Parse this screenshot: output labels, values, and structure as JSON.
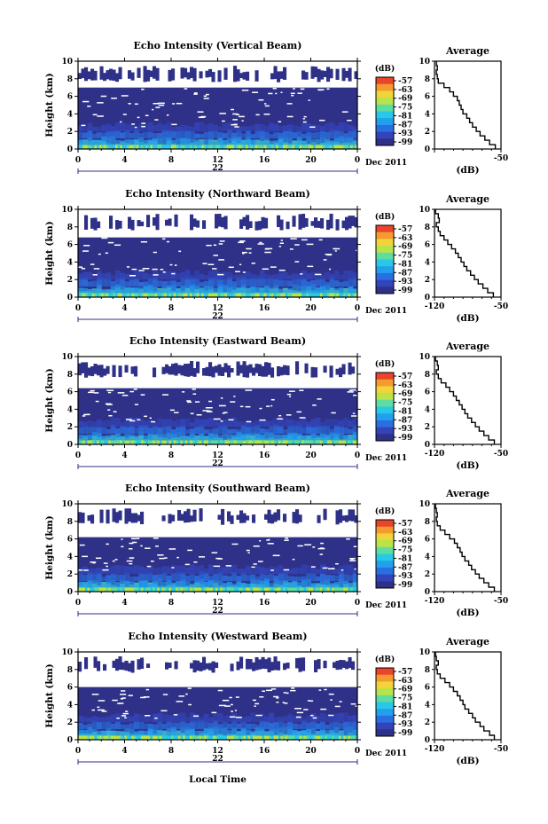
{
  "colors": {
    "background": "#2e3187",
    "colormap": [
      "#2e3187",
      "#3344b8",
      "#2a6fe0",
      "#22a0ee",
      "#27c9e6",
      "#5fdca0",
      "#b9e34a",
      "#f1d43a",
      "#f59a2e",
      "#e8452a"
    ]
  },
  "chart_data": [
    {
      "type": "heatmap",
      "title": "Echo Intensity (Vertical Beam)",
      "ylabel": "Height (km)",
      "xlim": [
        0,
        24
      ],
      "ylim": [
        0,
        10
      ],
      "xticks": [
        "0",
        "4",
        "8",
        "12",
        "16",
        "20",
        "0"
      ],
      "yticks": [
        "0",
        "2",
        "4",
        "6",
        "8",
        "10"
      ],
      "date_day": "22",
      "date_label": "Dec 2011",
      "colorbar": {
        "unit": "(dB)",
        "ticks": [
          "-57",
          "-63",
          "-69",
          "-75",
          "-81",
          "-87",
          "-93",
          "-99"
        ]
      },
      "average": {
        "title": "Average",
        "xlabel": "(dB)",
        "xticks": [
          "",
          "-50"
        ],
        "height_km": [
          0,
          0.5,
          1,
          1.5,
          2,
          2.5,
          3,
          3.5,
          4,
          4.5,
          5,
          5.5,
          6,
          6.5,
          7,
          7.5,
          8,
          8.5,
          9,
          9.5
        ],
        "db": [
          -56,
          -62,
          -67,
          -72,
          -76,
          -80,
          -83,
          -86,
          -90,
          -92,
          -94,
          -96,
          -100,
          -104,
          -110,
          -116,
          -117,
          -118,
          -117,
          -118
        ]
      }
    },
    {
      "type": "heatmap",
      "title": "Echo Intensity (Northward Beam)",
      "ylabel": "Height (km)",
      "xlim": [
        0,
        24
      ],
      "ylim": [
        0,
        10
      ],
      "xticks": [
        "0",
        "4",
        "8",
        "12",
        "16",
        "20",
        "0"
      ],
      "yticks": [
        "0",
        "2",
        "4",
        "6",
        "8",
        "10"
      ],
      "date_day": "22",
      "date_label": "Dec 2011",
      "colorbar": {
        "unit": "(dB)",
        "ticks": [
          "-57",
          "-63",
          "-69",
          "-75",
          "-81",
          "-87",
          "-93",
          "-99"
        ]
      },
      "average": {
        "title": "Average",
        "xlabel": "(dB)",
        "xticks": [
          "-120",
          "-50"
        ],
        "height_km": [
          0,
          0.5,
          1,
          1.5,
          2,
          2.5,
          3,
          3.5,
          4,
          4.5,
          5,
          5.5,
          6,
          6.5,
          7,
          7.5,
          8,
          8.5,
          9,
          9.5
        ],
        "db": [
          -58,
          -64,
          -69,
          -74,
          -78,
          -82,
          -86,
          -89,
          -92,
          -95,
          -98,
          -102,
          -106,
          -110,
          -114,
          -116,
          -118,
          -115,
          -116,
          -119
        ]
      }
    },
    {
      "type": "heatmap",
      "title": "Echo Intensity (Eastward Beam)",
      "ylabel": "Height (km)",
      "xlim": [
        0,
        24
      ],
      "ylim": [
        0,
        10
      ],
      "xticks": [
        "0",
        "4",
        "8",
        "12",
        "16",
        "20",
        "0"
      ],
      "yticks": [
        "0",
        "2",
        "4",
        "6",
        "8",
        "10"
      ],
      "date_day": "22",
      "date_label": "Dec 2011",
      "colorbar": {
        "unit": "(dB)",
        "ticks": [
          "-57",
          "-63",
          "-69",
          "-75",
          "-81",
          "-87",
          "-93",
          "-99"
        ]
      },
      "average": {
        "title": "Average",
        "xlabel": "(dB)",
        "xticks": [
          "-120",
          "-50"
        ],
        "height_km": [
          0,
          0.5,
          1,
          1.5,
          2,
          2.5,
          3,
          3.5,
          4,
          4.5,
          5,
          5.5,
          6,
          6.5,
          7,
          7.5,
          8,
          8.5,
          9,
          9.5
        ],
        "db": [
          -57,
          -63,
          -68,
          -73,
          -77,
          -81,
          -85,
          -88,
          -91,
          -94,
          -97,
          -100,
          -104,
          -108,
          -113,
          -116,
          -118,
          -116,
          -117,
          -119
        ]
      }
    },
    {
      "type": "heatmap",
      "title": "Echo Intensity (Southward Beam)",
      "ylabel": "Height (km)",
      "xlim": [
        0,
        24
      ],
      "ylim": [
        0,
        10
      ],
      "xticks": [
        "0",
        "4",
        "8",
        "12",
        "16",
        "20",
        "0"
      ],
      "yticks": [
        "0",
        "2",
        "4",
        "6",
        "8",
        "10"
      ],
      "date_day": "22",
      "date_label": "Dec 2011",
      "colorbar": {
        "unit": "(dB)",
        "ticks": [
          "-57",
          "-63",
          "-69",
          "-75",
          "-81",
          "-87",
          "-93",
          "-99"
        ]
      },
      "average": {
        "title": "Average",
        "xlabel": "(dB)",
        "xticks": [
          "-120",
          "-50"
        ],
        "height_km": [
          0,
          0.5,
          1,
          1.5,
          2,
          2.5,
          3,
          3.5,
          4,
          4.5,
          5,
          5.5,
          6,
          6.5,
          7,
          7.5,
          8,
          8.5,
          9,
          9.5
        ],
        "db": [
          -57,
          -63,
          -68,
          -73,
          -77,
          -81,
          -84,
          -88,
          -91,
          -93,
          -96,
          -99,
          -104,
          -109,
          -114,
          -117,
          -118,
          -117,
          -118,
          -119
        ]
      }
    },
    {
      "type": "heatmap",
      "title": "Echo Intensity (Westward Beam)",
      "ylabel": "Height (km)",
      "xlabel": "Local Time",
      "xlim": [
        0,
        24
      ],
      "ylim": [
        0,
        10
      ],
      "xticks": [
        "0",
        "4",
        "8",
        "12",
        "16",
        "20",
        "0"
      ],
      "yticks": [
        "0",
        "2",
        "4",
        "6",
        "8",
        "10"
      ],
      "date_day": "22",
      "date_label": "Dec 2011",
      "colorbar": {
        "unit": "(dB)",
        "ticks": [
          "-57",
          "-63",
          "-69",
          "-75",
          "-81",
          "-87",
          "-93",
          "-99"
        ]
      },
      "average": {
        "title": "Average",
        "xlabel": "(dB)",
        "xticks": [
          "-120",
          "-50"
        ],
        "height_km": [
          0,
          0.5,
          1,
          1.5,
          2,
          2.5,
          3,
          3.5,
          4,
          4.5,
          5,
          5.5,
          6,
          6.5,
          7,
          7.5,
          8,
          8.5,
          9,
          9.5
        ],
        "db": [
          -57,
          -62,
          -68,
          -72,
          -77,
          -80,
          -84,
          -88,
          -90,
          -93,
          -96,
          -100,
          -104,
          -109,
          -114,
          -117,
          -118,
          -116,
          -118,
          -119
        ]
      }
    }
  ]
}
